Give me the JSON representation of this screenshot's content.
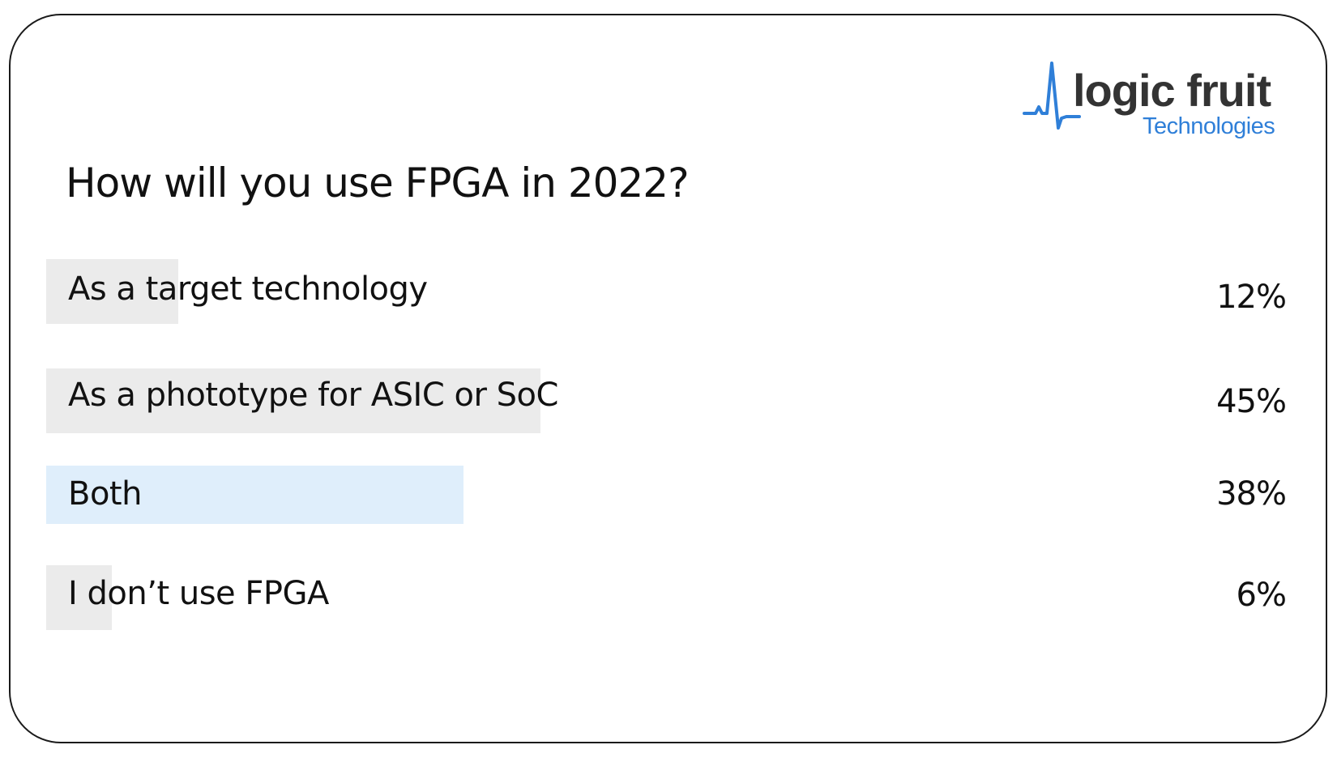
{
  "brand": {
    "name_main": "logic fruit",
    "name_sub": "Technologies",
    "color_main": "#333333",
    "color_sub": "#2f7fd8"
  },
  "chart_data": {
    "type": "bar",
    "orientation": "horizontal",
    "title": "How will you use FPGA in 2022?",
    "categories": [
      "As a target technology",
      "As a phototype for ASIC or SoC",
      "Both",
      "I don’t use FPGA"
    ],
    "values": [
      12,
      45,
      38,
      6
    ],
    "value_labels": [
      "12%",
      "45%",
      "38%",
      "6%"
    ],
    "unit": "%",
    "xlim": [
      0,
      100
    ],
    "highlighted_index": 2,
    "bar_color": "#ebebeb",
    "highlight_color": "#dfeefb",
    "grid": false,
    "legend": "none"
  }
}
